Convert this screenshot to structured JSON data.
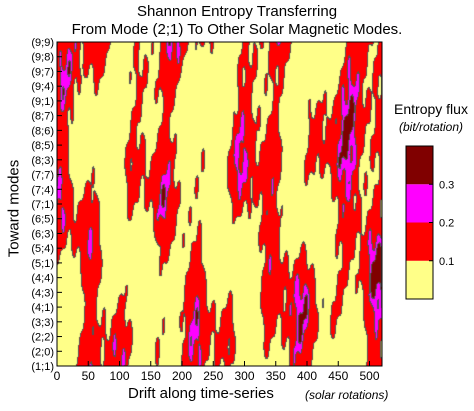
{
  "chart_data": {
    "type": "heatmap",
    "title_line1": "Shannon Entropy Transferring",
    "title_line2": "From Mode (2;1) To Other Solar Magnetic Modes.",
    "xlabel": "Drift along time-series",
    "xlabel_unit": "(solar rotations)",
    "ylabel": "Toward modes",
    "x_ticks": [
      0,
      50,
      100,
      150,
      200,
      250,
      300,
      350,
      400,
      450,
      500
    ],
    "xlim": [
      0,
      520
    ],
    "y_categories": [
      "(1;1)",
      "(2;0)",
      "(2;2)",
      "(3;3)",
      "(4;1)",
      "(4;3)",
      "(4;4)",
      "(5;1)",
      "(5;4)",
      "(6;3)",
      "(6;5)",
      "(7;1)",
      "(7;4)",
      "(7;7)",
      "(8;3)",
      "(8;5)",
      "(8;6)",
      "(8;7)",
      "(9;1)",
      "(9;4)",
      "(9;7)",
      "(9;8)",
      "(9;9)"
    ],
    "legend": {
      "title": "Entropy flux",
      "unit": "(bit/rotation)",
      "levels": [
        {
          "range": [
            0.0,
            0.1
          ],
          "color": "#ffff88"
        },
        {
          "range": [
            0.1,
            0.2
          ],
          "color": "#ff0000"
        },
        {
          "range": [
            0.2,
            0.3
          ],
          "color": "#ff00ff"
        },
        {
          "range": [
            0.3,
            0.4
          ],
          "color": "#800000"
        }
      ],
      "tick_values": [
        0.1,
        0.2,
        0.3
      ]
    },
    "contour_color": "#555555"
  }
}
